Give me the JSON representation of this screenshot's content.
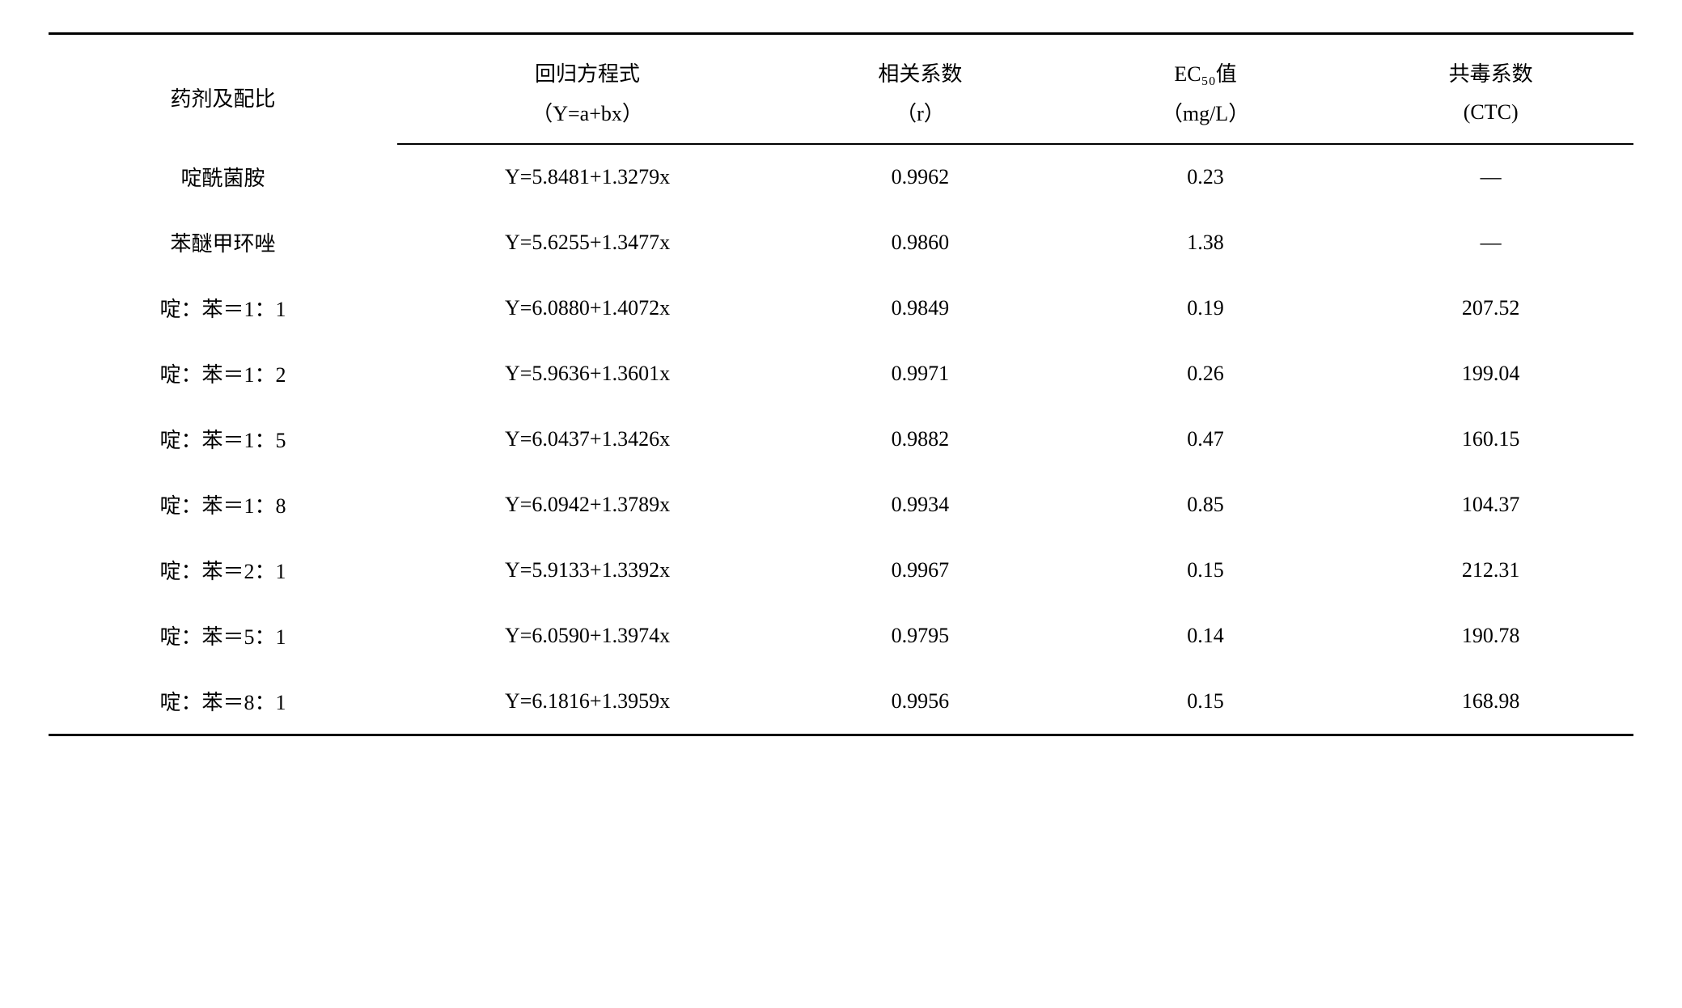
{
  "table": {
    "type": "table",
    "background_color": "#ffffff",
    "text_color": "#000000",
    "header_fontsize": 26,
    "body_fontsize": 26,
    "rule_color": "#000000",
    "top_rule_width": 3,
    "mid_rule_width": 2,
    "bottom_rule_width": 3,
    "columns": [
      {
        "key": "agent",
        "label_main": "药剂及配比",
        "label_sub": "",
        "width_pct": 22,
        "align": "center"
      },
      {
        "key": "eq",
        "label_main": "回归方程式",
        "label_sub": "（Y=a+bx）",
        "width_pct": 24,
        "align": "center"
      },
      {
        "key": "r",
        "label_main": "相关系数",
        "label_sub": "（r）",
        "width_pct": 18,
        "align": "center"
      },
      {
        "key": "ec",
        "label_main": "EC₅₀值",
        "label_sub": "（mg/L）",
        "width_pct": 18,
        "align": "center"
      },
      {
        "key": "ctc",
        "label_main": "共毒系数",
        "label_sub": "(CTC)",
        "width_pct": 18,
        "align": "center"
      }
    ],
    "rows": [
      {
        "agent": "啶酰菌胺",
        "eq": "Y=5.8481+1.3279x",
        "r": "0.9962",
        "ec": "0.23",
        "ctc": "—"
      },
      {
        "agent": "苯醚甲环唑",
        "eq": "Y=5.6255+1.3477x",
        "r": "0.9860",
        "ec": "1.38",
        "ctc": "—"
      },
      {
        "agent": "啶：苯＝1：1",
        "eq": "Y=6.0880+1.4072x",
        "r": "0.9849",
        "ec": "0.19",
        "ctc": "207.52"
      },
      {
        "agent": "啶：苯＝1：2",
        "eq": "Y=5.9636+1.3601x",
        "r": "0.9971",
        "ec": "0.26",
        "ctc": "199.04"
      },
      {
        "agent": "啶：苯＝1：5",
        "eq": "Y=6.0437+1.3426x",
        "r": "0.9882",
        "ec": "0.47",
        "ctc": "160.15"
      },
      {
        "agent": "啶：苯＝1：8",
        "eq": "Y=6.0942+1.3789x",
        "r": "0.9934",
        "ec": "0.85",
        "ctc": "104.37"
      },
      {
        "agent": "啶：苯＝2：1",
        "eq": "Y=5.9133+1.3392x",
        "r": "0.9967",
        "ec": "0.15",
        "ctc": "212.31"
      },
      {
        "agent": "啶：苯＝5：1",
        "eq": "Y=6.0590+1.3974x",
        "r": "0.9795",
        "ec": "0.14",
        "ctc": "190.78"
      },
      {
        "agent": "啶：苯＝8：1",
        "eq": "Y=6.1816+1.3959x",
        "r": "0.9956",
        "ec": "0.15",
        "ctc": "168.98"
      }
    ]
  }
}
